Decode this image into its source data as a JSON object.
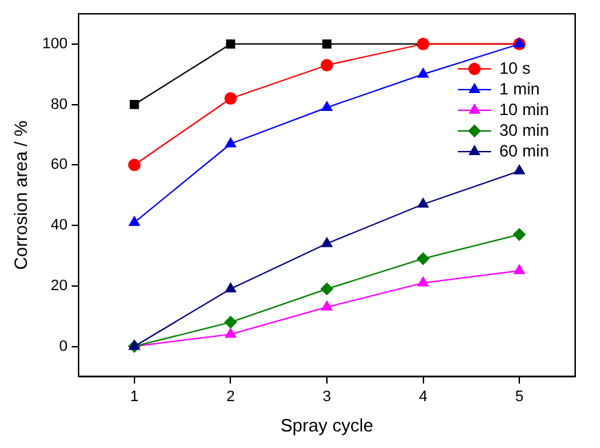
{
  "chart_data": {
    "type": "line",
    "xlabel": "Spray cycle",
    "ylabel": "Corrosion area / %",
    "x": [
      1,
      2,
      3,
      4,
      5
    ],
    "xlim": [
      0.42,
      5.58
    ],
    "xticks": [
      1,
      2,
      3,
      4,
      5
    ],
    "ylim": [
      -10,
      110
    ],
    "yticks": [
      0,
      20,
      40,
      60,
      80,
      100
    ],
    "grid": false,
    "legend": "top right",
    "series": [
      {
        "color": "#000000",
        "marker": "square",
        "values": [
          80,
          100,
          100,
          100,
          100
        ]
      },
      {
        "name": "10 s",
        "color": "#ff0000",
        "marker": "circle",
        "values": [
          60,
          82,
          93,
          100,
          100
        ]
      },
      {
        "name": "1 min",
        "color": "#0000ff",
        "marker": "triangle",
        "values": [
          41,
          67,
          79,
          90,
          100
        ]
      },
      {
        "name": "10 min",
        "color": "#ff00ff",
        "marker": "triangle",
        "values": [
          0,
          4,
          13,
          21,
          25
        ]
      },
      {
        "name": "30 min",
        "color": "#008000",
        "marker": "diamond",
        "values": [
          0,
          8,
          19,
          29,
          37
        ]
      },
      {
        "name": "60 min",
        "color": "#000080",
        "marker": "triangle",
        "values": [
          0,
          19,
          34,
          47,
          58
        ]
      }
    ]
  }
}
